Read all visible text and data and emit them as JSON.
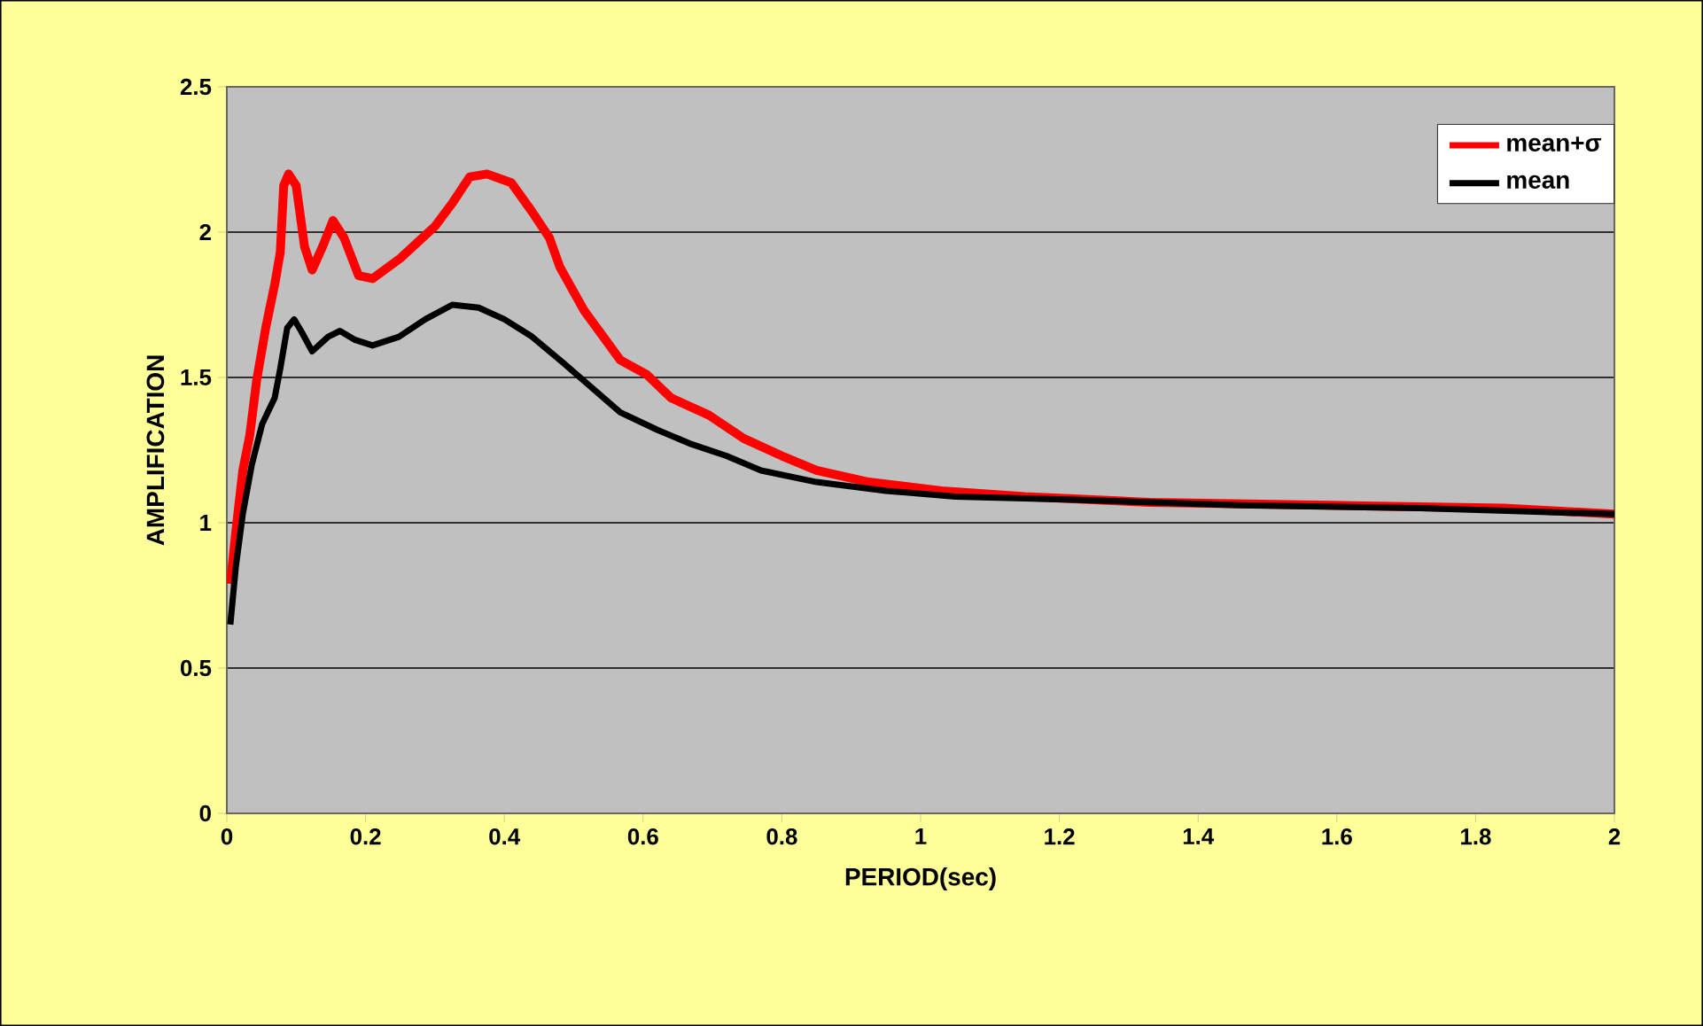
{
  "chart_data": {
    "type": "line",
    "xlabel": "PERIOD(sec)",
    "ylabel": "AMPLIFICATION",
    "xlim": [
      0,
      2
    ],
    "ylim": [
      0,
      2.5
    ],
    "xticks": [
      0,
      0.2,
      0.4,
      0.6,
      0.8,
      1,
      1.2,
      1.4,
      1.6,
      1.8,
      2
    ],
    "yticks": [
      0,
      0.5,
      1,
      1.5,
      2,
      2.5
    ],
    "grid": "y",
    "legend": "top right",
    "line_style": "solid",
    "series": [
      {
        "name": "mean+σ",
        "color": "#ff0000",
        "x": [
          0.005,
          0.013,
          0.023,
          0.033,
          0.043,
          0.056,
          0.069,
          0.077,
          0.082,
          0.089,
          0.1,
          0.112,
          0.123,
          0.138,
          0.153,
          0.169,
          0.19,
          0.21,
          0.25,
          0.3,
          0.325,
          0.35,
          0.375,
          0.41,
          0.44,
          0.465,
          0.48,
          0.515,
          0.567,
          0.605,
          0.64,
          0.695,
          0.745,
          0.8,
          0.85,
          0.925,
          1.03,
          1.15,
          1.33,
          1.59,
          1.84,
          2.0
        ],
        "values": [
          0.79,
          0.97,
          1.18,
          1.3,
          1.49,
          1.67,
          1.82,
          1.93,
          2.16,
          2.2,
          2.16,
          1.95,
          1.87,
          1.95,
          2.04,
          1.98,
          1.85,
          1.84,
          1.91,
          2.02,
          2.1,
          2.19,
          2.2,
          2.17,
          2.07,
          1.98,
          1.88,
          1.73,
          1.56,
          1.51,
          1.43,
          1.37,
          1.29,
          1.23,
          1.18,
          1.14,
          1.11,
          1.09,
          1.07,
          1.06,
          1.05,
          1.03
        ]
      },
      {
        "name": "mean",
        "color": "#000000",
        "x": [
          0.005,
          0.013,
          0.023,
          0.036,
          0.051,
          0.069,
          0.077,
          0.087,
          0.097,
          0.107,
          0.123,
          0.146,
          0.163,
          0.184,
          0.21,
          0.248,
          0.286,
          0.325,
          0.363,
          0.4,
          0.44,
          0.485,
          0.567,
          0.62,
          0.67,
          0.72,
          0.77,
          0.85,
          0.95,
          1.05,
          1.21,
          1.46,
          1.72,
          2.0
        ],
        "values": [
          0.65,
          0.85,
          1.03,
          1.2,
          1.34,
          1.43,
          1.53,
          1.67,
          1.7,
          1.66,
          1.59,
          1.64,
          1.66,
          1.63,
          1.61,
          1.64,
          1.7,
          1.75,
          1.74,
          1.7,
          1.64,
          1.55,
          1.38,
          1.32,
          1.27,
          1.23,
          1.18,
          1.14,
          1.11,
          1.09,
          1.08,
          1.06,
          1.05,
          1.03
        ]
      }
    ]
  }
}
